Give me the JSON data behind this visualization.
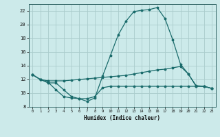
{
  "xlabel": "Humidex (Indice chaleur)",
  "bg_color": "#cceaea",
  "grid_color": "#aacccc",
  "line_color": "#1a6b6b",
  "xlim": [
    -0.5,
    23.5
  ],
  "ylim": [
    8,
    23
  ],
  "yticks": [
    8,
    10,
    12,
    14,
    16,
    18,
    20,
    22
  ],
  "xticks": [
    0,
    1,
    2,
    3,
    4,
    5,
    6,
    7,
    8,
    9,
    10,
    11,
    12,
    13,
    14,
    15,
    16,
    17,
    18,
    19,
    20,
    21,
    22,
    23
  ],
  "curve1_x": [
    0,
    1,
    2,
    3,
    4,
    5,
    6,
    7,
    8,
    9,
    10,
    11,
    12,
    13,
    14,
    15,
    16,
    17,
    18,
    19,
    20,
    21,
    22,
    23
  ],
  "curve1_y": [
    12.7,
    12.0,
    11.5,
    11.5,
    10.5,
    9.5,
    9.2,
    8.8,
    9.3,
    12.5,
    15.5,
    18.5,
    20.5,
    21.9,
    22.1,
    22.2,
    22.5,
    20.9,
    17.8,
    14.2,
    12.8,
    11.0,
    11.0,
    10.7
  ],
  "curve2_x": [
    0,
    1,
    2,
    3,
    4,
    5,
    6,
    7,
    8,
    9,
    10,
    11,
    12,
    13,
    14,
    15,
    16,
    17,
    18,
    19,
    20,
    21,
    22,
    23
  ],
  "curve2_y": [
    12.7,
    12.0,
    11.8,
    11.8,
    11.8,
    11.9,
    12.0,
    12.1,
    12.2,
    12.3,
    12.4,
    12.5,
    12.6,
    12.8,
    13.0,
    13.2,
    13.4,
    13.5,
    13.7,
    13.9,
    12.8,
    11.1,
    11.0,
    10.7
  ],
  "curve3_x": [
    0,
    1,
    2,
    3,
    4,
    5,
    6,
    7,
    8,
    9,
    10,
    11,
    12,
    13,
    14,
    15,
    16,
    17,
    18,
    19,
    20,
    21,
    22,
    23
  ],
  "curve3_y": [
    12.7,
    12.0,
    11.6,
    10.5,
    9.5,
    9.3,
    9.2,
    9.2,
    9.5,
    10.8,
    11.0,
    11.0,
    11.0,
    11.0,
    11.0,
    11.0,
    11.0,
    11.0,
    11.0,
    11.0,
    11.0,
    11.0,
    11.0,
    10.7
  ]
}
